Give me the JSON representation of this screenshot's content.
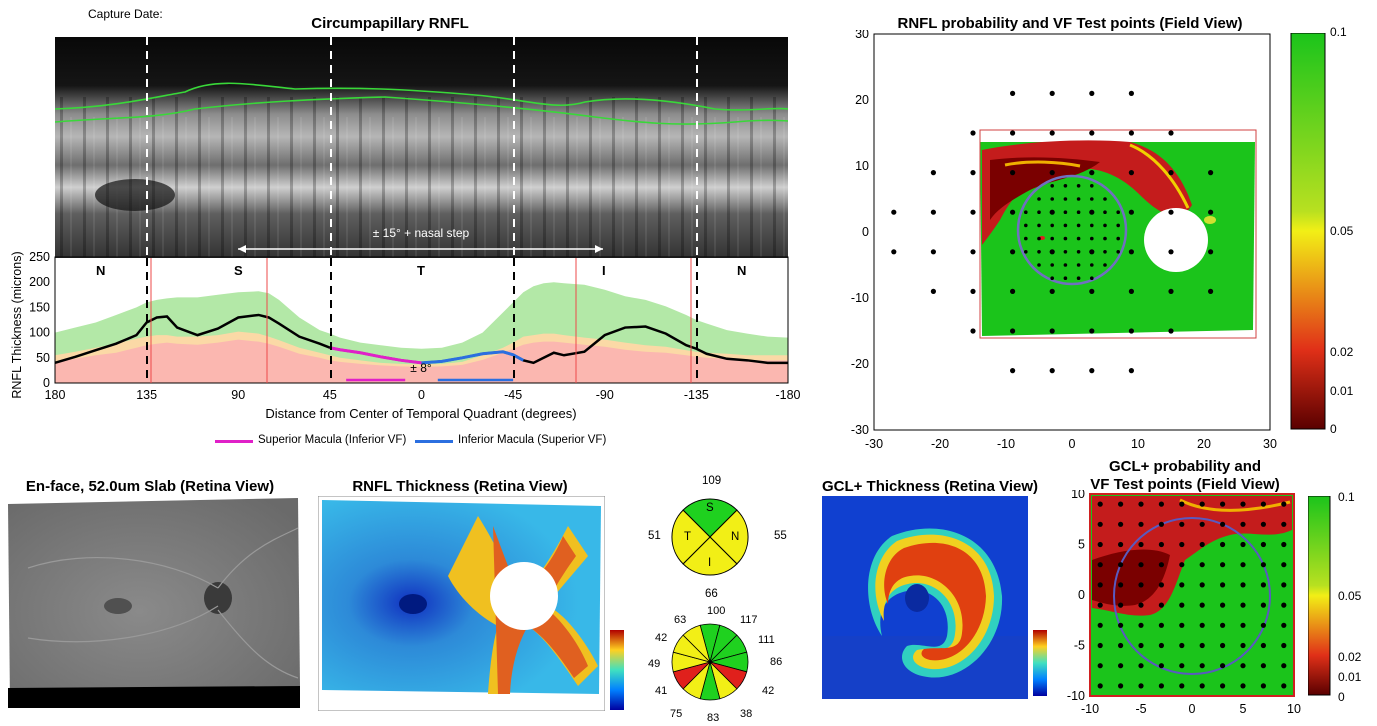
{
  "header": {
    "capture_date_label": "Capture Date:"
  },
  "chart_data": [
    {
      "id": "rnfl_profile",
      "type": "area",
      "title": "Circumpapillary RNFL",
      "xlabel": "Distance from Center of Temporal Quadrant (degrees)",
      "ylabel": "RNFL Thickness (microns)",
      "xlim": [
        180,
        -180
      ],
      "ylim": [
        0,
        250
      ],
      "x_ticks": [
        "180",
        "135",
        "90",
        "45",
        "0",
        "-45",
        "-90",
        "-135",
        "-180"
      ],
      "y_ticks": [
        "0",
        "50",
        "100",
        "150",
        "200",
        "250"
      ],
      "quadrant_labels": [
        "N",
        "S",
        "T",
        "I",
        "N"
      ],
      "annotations": {
        "range": "± 15° + nasal step",
        "macula": "± 8°"
      },
      "x": [
        180,
        170,
        160,
        150,
        140,
        135,
        130,
        125,
        120,
        110,
        100,
        90,
        80,
        75,
        70,
        60,
        50,
        45,
        40,
        30,
        20,
        10,
        0,
        -10,
        -20,
        -30,
        -40,
        -45,
        -50,
        -55,
        -60,
        -65,
        -70,
        -80,
        -90,
        -100,
        -110,
        -120,
        -130,
        -135,
        -140,
        -150,
        -160,
        -170,
        -180
      ],
      "series": [
        {
          "name": "Patient RNFL",
          "color": "#000000",
          "values": [
            40,
            52,
            65,
            78,
            95,
            120,
            130,
            132,
            110,
            95,
            108,
            130,
            135,
            130,
            118,
            92,
            78,
            70,
            66,
            60,
            52,
            45,
            40,
            43,
            50,
            58,
            62,
            56,
            45,
            40,
            50,
            60,
            55,
            62,
            95,
            110,
            112,
            98,
            75,
            68,
            58,
            48,
            45,
            40,
            40
          ]
        },
        {
          "name": "Normal upper",
          "color": "#b3e8a7",
          "values": [
            100,
            110,
            120,
            135,
            150,
            160,
            165,
            168,
            170,
            170,
            175,
            180,
            182,
            178,
            165,
            130,
            105,
            98,
            90,
            80,
            75,
            70,
            68,
            70,
            80,
            100,
            140,
            160,
            180,
            192,
            198,
            200,
            198,
            195,
            185,
            172,
            165,
            152,
            135,
            125,
            118,
            105,
            98,
            92,
            90
          ]
        },
        {
          "name": "Normal lower",
          "color": "#fbd9a6",
          "values": [
            55,
            62,
            70,
            78,
            88,
            92,
            95,
            95,
            92,
            92,
            95,
            102,
            98,
            92,
            85,
            70,
            60,
            55,
            50,
            45,
            40,
            38,
            37,
            38,
            42,
            55,
            70,
            80,
            92,
            95,
            98,
            98,
            95,
            90,
            86,
            80,
            75,
            72,
            65,
            62,
            60,
            58,
            55,
            55,
            55
          ]
        },
        {
          "name": "Borderline",
          "color": "#fbb7b0",
          "values": [
            42,
            48,
            55,
            60,
            70,
            75,
            78,
            80,
            78,
            76,
            80,
            86,
            82,
            78,
            72,
            58,
            50,
            45,
            42,
            38,
            35,
            33,
            32,
            33,
            36,
            46,
            60,
            68,
            76,
            80,
            82,
            82,
            80,
            76,
            72,
            66,
            62,
            60,
            55,
            52,
            50,
            48,
            45,
            45,
            45
          ]
        }
      ],
      "legend": [
        {
          "label": "Superior Macula (Inferior VF)",
          "color": "#e020c8"
        },
        {
          "label": "Inferior Macula (Superior VF)",
          "color": "#2b6fe0"
        }
      ]
    },
    {
      "id": "rnfl_vf_field",
      "type": "heatmap",
      "title": "RNFL probability and VF Test points (Field View)",
      "xlim": [
        -30,
        30
      ],
      "ylim": [
        -30,
        30
      ],
      "x_ticks": [
        "-30",
        "-20",
        "-10",
        "0",
        "10",
        "20",
        "30"
      ],
      "y_ticks": [
        "30",
        "20",
        "10",
        "0",
        "-10",
        "-20",
        "-30"
      ],
      "colorbar": [
        "0.1",
        "0.05",
        "0.02",
        "0.01",
        "0"
      ]
    },
    {
      "id": "gcl_vf_field",
      "type": "heatmap",
      "title_line1": "GCL+ probability and",
      "title_line2": "VF Test points (Field View)",
      "xlim": [
        -10,
        10
      ],
      "ylim": [
        -10,
        10
      ],
      "x_ticks": [
        "-10",
        "-5",
        "0",
        "5",
        "10"
      ],
      "y_ticks": [
        "10",
        "5",
        "0",
        "-5",
        "-10"
      ],
      "colorbar": [
        "0.1",
        "0.05",
        "0.02",
        "0.01",
        "0"
      ]
    }
  ],
  "panels": {
    "enface_title": "En-face, 52.0um Slab (Retina View)",
    "rnfl_map_title": "RNFL Thickness (Retina View)",
    "gcl_map_title": "GCL+ Thickness (Retina View)"
  },
  "quadrant_chart": {
    "top": "109",
    "left": "51",
    "right": "55",
    "bottom": "66",
    "sectors": [
      "S",
      "T",
      "N",
      "I"
    ]
  },
  "clock_chart": {
    "values": [
      "100",
      "117",
      "111",
      "86",
      "42",
      "38",
      "83",
      "75",
      "41",
      "49",
      "42",
      "63"
    ]
  },
  "colors": {
    "normal": "#1fd11f",
    "borderline": "#f2ef16",
    "abnormal": "#e0201c",
    "superior_macula": "#e020c8",
    "inferior_macula": "#2b6fe0"
  }
}
